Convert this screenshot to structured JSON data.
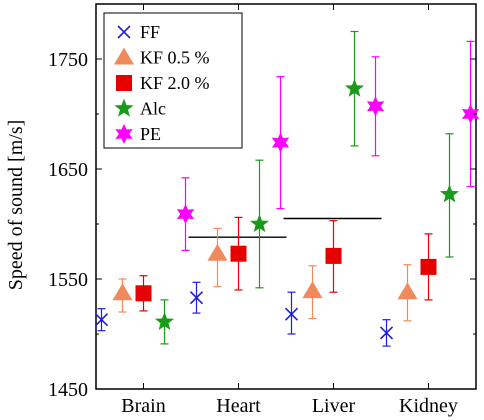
{
  "chart_data": {
    "type": "scatter",
    "title": "",
    "xlabel": "",
    "ylabel": "Speed of sound [m/s]",
    "categories": [
      "Brain",
      "Heart",
      "Liver",
      "Kidney"
    ],
    "ylim": [
      1450,
      1800
    ],
    "yticks": [
      1450,
      1550,
      1650,
      1750
    ],
    "grid": false,
    "legend_position": "top-left",
    "series": [
      {
        "name": "FF",
        "color": "#1f1fd6",
        "marker": "x-icon",
        "values": [
          1513,
          1533,
          1518,
          1501
        ],
        "err_low": [
          10,
          14,
          18,
          12
        ],
        "err_high": [
          10,
          14,
          20,
          12
        ]
      },
      {
        "name": "KF 0.5 %",
        "color": "#f08a5d",
        "marker": "triangle-icon",
        "values": [
          1537,
          1573,
          1539,
          1538
        ],
        "err_low": [
          17,
          30,
          25,
          26
        ],
        "err_high": [
          13,
          23,
          23,
          25
        ]
      },
      {
        "name": "KF 2.0 %",
        "color": "#e60000",
        "marker": "square-icon",
        "values": [
          1537,
          1573,
          1571,
          1561
        ],
        "err_low": [
          16,
          33,
          33,
          30
        ],
        "err_high": [
          16,
          33,
          32,
          30
        ]
      },
      {
        "name": "Alc",
        "color": "#1a9a1a",
        "marker": "star-icon",
        "values": [
          1511,
          1600,
          1723,
          1627
        ],
        "err_low": [
          20,
          58,
          52,
          57
        ],
        "err_high": [
          20,
          58,
          52,
          55
        ]
      },
      {
        "name": "PE",
        "color": "#ff00ff",
        "marker": "hexstar-icon",
        "values": [
          1609,
          1674,
          1707,
          1700
        ],
        "err_low": [
          33,
          60,
          45,
          66
        ],
        "err_high": [
          33,
          60,
          45,
          66
        ]
      }
    ],
    "reference_lines": [
      {
        "category": "Heart",
        "value": 1588
      },
      {
        "category": "Liver",
        "value": 1605
      }
    ]
  }
}
